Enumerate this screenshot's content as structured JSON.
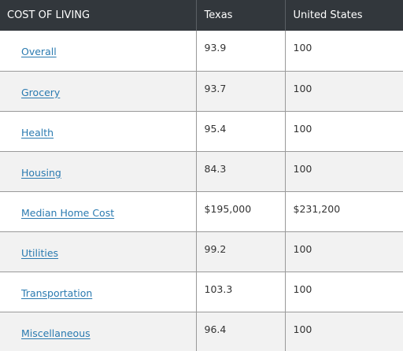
{
  "table": {
    "headers": [
      "COST OF LIVING",
      "Texas",
      "United States"
    ],
    "rows": [
      {
        "label": "Overall",
        "texas": "93.9",
        "us": "100"
      },
      {
        "label": "Grocery",
        "texas": "93.7",
        "us": "100"
      },
      {
        "label": "Health",
        "texas": "95.4",
        "us": "100"
      },
      {
        "label": "Housing",
        "texas": "84.3",
        "us": "100"
      },
      {
        "label": "Median Home Cost",
        "texas": "$195,000",
        "us": "$231,200"
      },
      {
        "label": "Utilities",
        "texas": "99.2",
        "us": "100"
      },
      {
        "label": "Transportation",
        "texas": "103.3",
        "us": "100"
      },
      {
        "label": "Miscellaneous",
        "texas": "96.4",
        "us": "100"
      }
    ]
  },
  "colors": {
    "header_bg": "#32373c",
    "header_text": "#ffffff",
    "link": "#2a7ab0",
    "row_alt_bg": "#f2f2f2"
  }
}
